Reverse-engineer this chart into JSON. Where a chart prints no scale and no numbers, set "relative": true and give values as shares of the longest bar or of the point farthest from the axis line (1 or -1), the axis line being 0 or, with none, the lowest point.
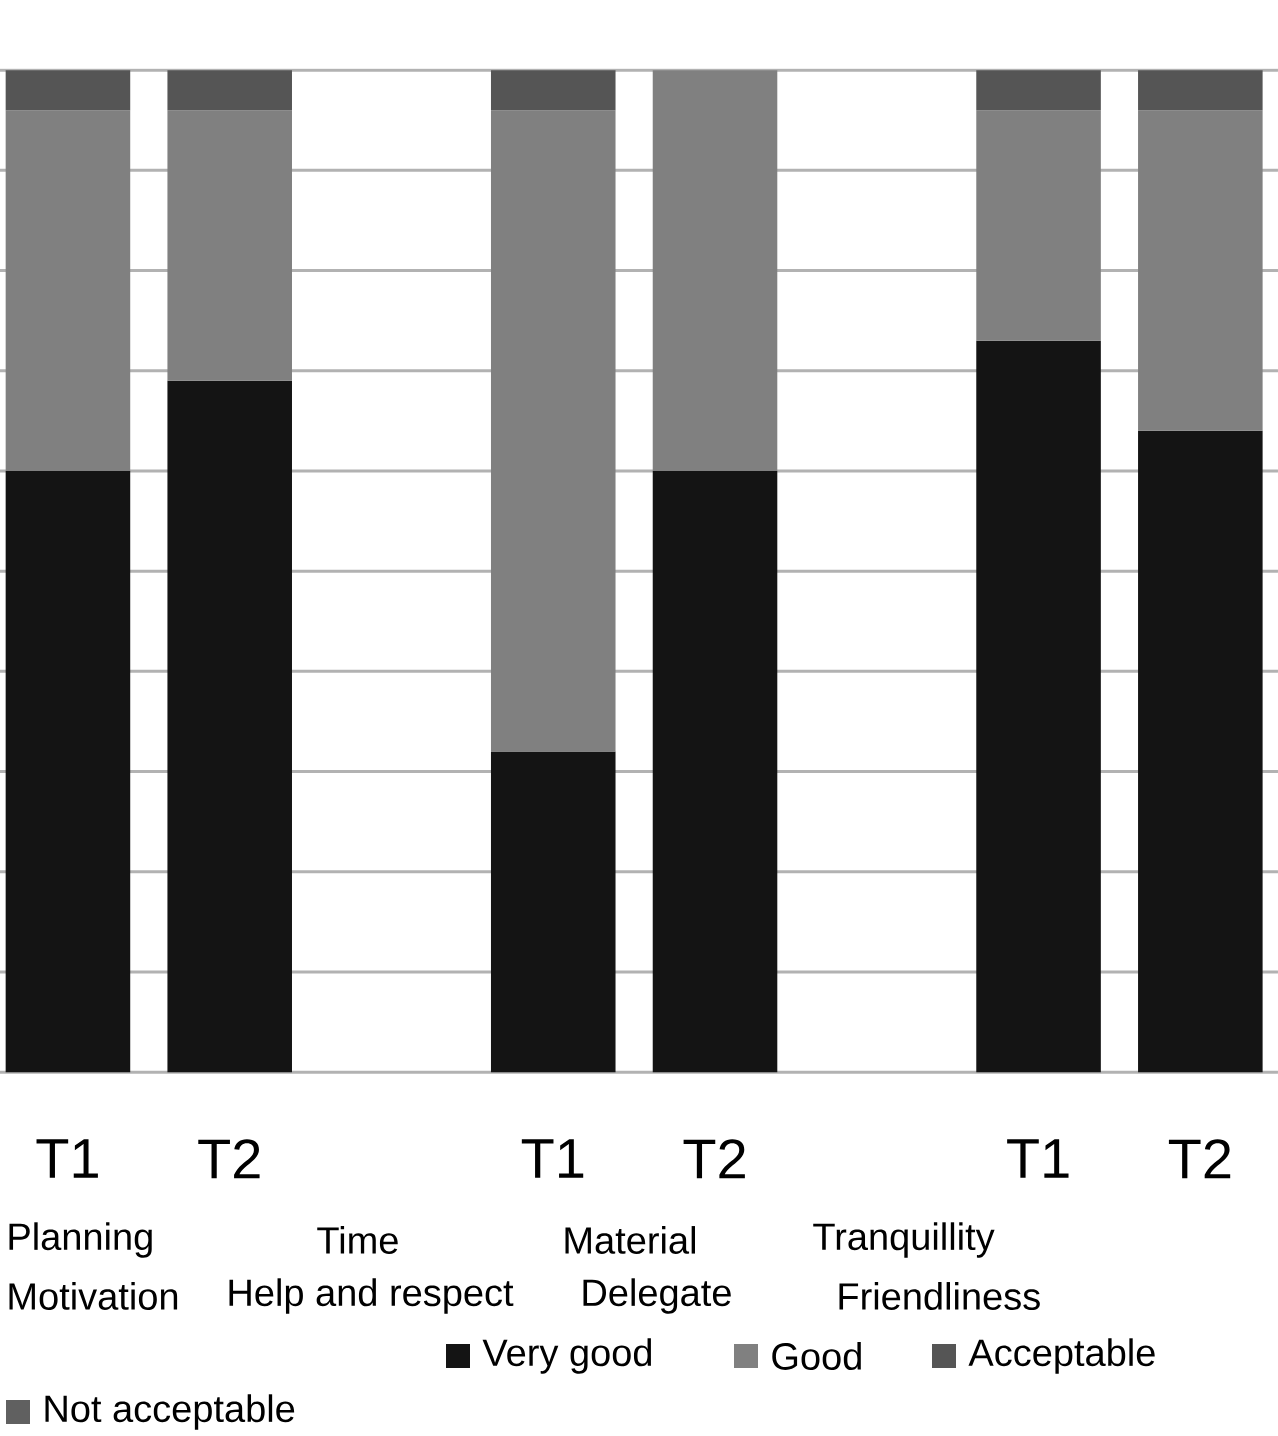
{
  "chart_data": {
    "type": "bar",
    "stacked": true,
    "relative": true,
    "grid": "y",
    "legend": "bottom",
    "categories": [
      "T1",
      "T2",
      null,
      "T1",
      "T2",
      null,
      "T1",
      "T2"
    ],
    "series": [
      {
        "name": "Very good",
        "color": "#141414",
        "values": [
          0.6,
          0.69,
          null,
          0.32,
          0.6,
          null,
          0.73,
          0.64
        ]
      },
      {
        "name": "Good",
        "color": "#808080",
        "values": [
          0.36,
          0.27,
          null,
          0.64,
          0.4,
          null,
          0.23,
          0.32
        ]
      },
      {
        "name": "Acceptable",
        "color": "#555555",
        "values": [
          0.04,
          0.04,
          null,
          0.04,
          0,
          null,
          0.04,
          0.04
        ]
      },
      {
        "name": "Not acceptable",
        "color": "#606060",
        "values": [
          0,
          0,
          null,
          0,
          0,
          null,
          0,
          0
        ]
      }
    ],
    "annotations": [
      "Planning",
      "Time",
      "Material",
      "Tranquillity",
      "Motivation",
      "Help and respect",
      "Delegate",
      "Friendliness"
    ]
  }
}
